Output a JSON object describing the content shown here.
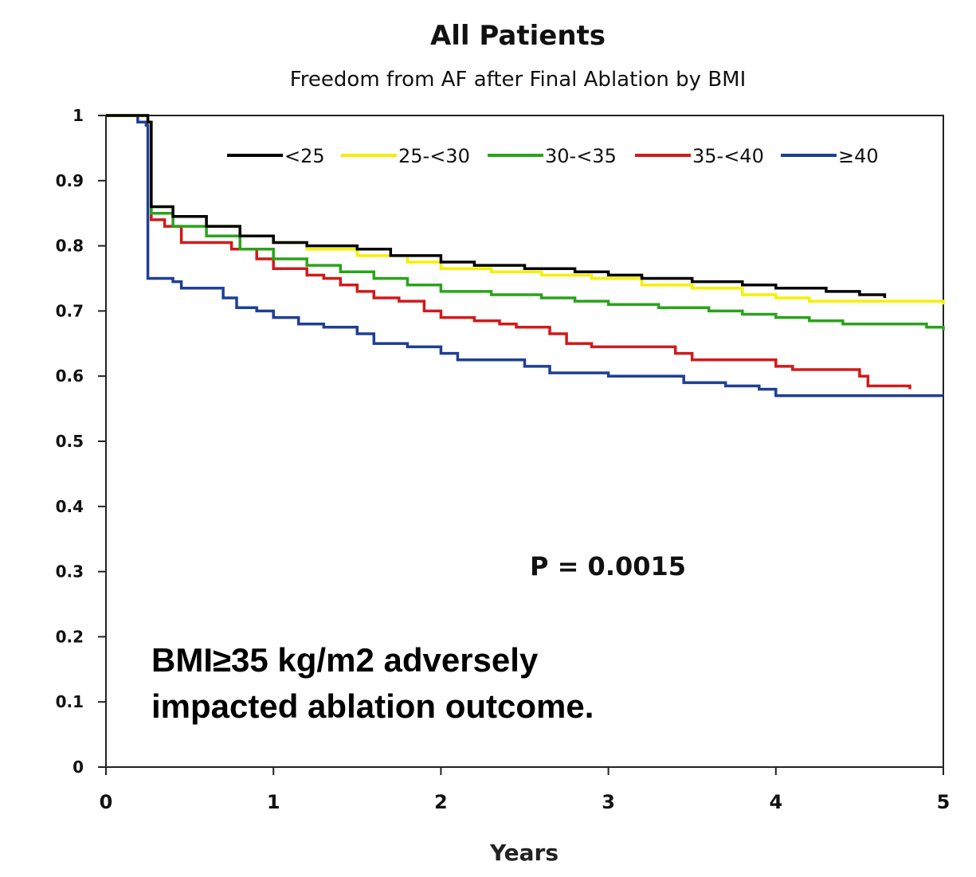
{
  "chart_data": {
    "type": "line",
    "title": "All Patients",
    "subtitle": "Freedom from AF after Final Ablation by BMI",
    "xlabel": "Years",
    "ylabel": "",
    "xlim": [
      0,
      5
    ],
    "ylim": [
      0,
      1
    ],
    "xticks": [
      "0",
      "1",
      "2",
      "3",
      "4",
      "5"
    ],
    "yticks": [
      "0",
      "0.1",
      "0.2",
      "0.3",
      "0.4",
      "0.5",
      "0.6",
      "0.7",
      "0.8",
      "0.9",
      "1"
    ],
    "grid": false,
    "legend_position": "top",
    "series": [
      {
        "name": "<25",
        "color": "#000000",
        "points": [
          [
            0,
            1
          ],
          [
            0.2,
            1
          ],
          [
            0.25,
            0.99
          ],
          [
            0.27,
            0.86
          ],
          [
            0.4,
            0.845
          ],
          [
            0.6,
            0.83
          ],
          [
            0.8,
            0.815
          ],
          [
            1.0,
            0.805
          ],
          [
            1.2,
            0.8
          ],
          [
            1.5,
            0.795
          ],
          [
            1.7,
            0.785
          ],
          [
            2.0,
            0.775
          ],
          [
            2.2,
            0.77
          ],
          [
            2.5,
            0.765
          ],
          [
            2.8,
            0.76
          ],
          [
            3.0,
            0.755
          ],
          [
            3.2,
            0.75
          ],
          [
            3.5,
            0.745
          ],
          [
            3.8,
            0.74
          ],
          [
            4.0,
            0.735
          ],
          [
            4.3,
            0.73
          ],
          [
            4.5,
            0.725
          ],
          [
            4.65,
            0.72
          ]
        ]
      },
      {
        "name": "25-<30",
        "color": "#f5f000",
        "points": [
          [
            0,
            1
          ],
          [
            0.2,
            1
          ],
          [
            0.25,
            0.99
          ],
          [
            0.27,
            0.86
          ],
          [
            0.4,
            0.845
          ],
          [
            0.6,
            0.83
          ],
          [
            0.8,
            0.815
          ],
          [
            1.0,
            0.805
          ],
          [
            1.2,
            0.795
          ],
          [
            1.5,
            0.785
          ],
          [
            1.8,
            0.775
          ],
          [
            2.0,
            0.765
          ],
          [
            2.3,
            0.76
          ],
          [
            2.6,
            0.755
          ],
          [
            2.9,
            0.75
          ],
          [
            3.2,
            0.74
          ],
          [
            3.5,
            0.735
          ],
          [
            3.8,
            0.725
          ],
          [
            4.0,
            0.72
          ],
          [
            4.2,
            0.715
          ],
          [
            4.5,
            0.715
          ],
          [
            4.9,
            0.715
          ],
          [
            5.0,
            0.71
          ]
        ]
      },
      {
        "name": "30-<35",
        "color": "#2aa31a",
        "points": [
          [
            0,
            1
          ],
          [
            0.2,
            1
          ],
          [
            0.25,
            0.99
          ],
          [
            0.27,
            0.85
          ],
          [
            0.4,
            0.83
          ],
          [
            0.6,
            0.815
          ],
          [
            0.8,
            0.795
          ],
          [
            1.0,
            0.78
          ],
          [
            1.2,
            0.77
          ],
          [
            1.4,
            0.76
          ],
          [
            1.6,
            0.75
          ],
          [
            1.8,
            0.74
          ],
          [
            2.0,
            0.73
          ],
          [
            2.3,
            0.725
          ],
          [
            2.6,
            0.72
          ],
          [
            2.8,
            0.715
          ],
          [
            3.0,
            0.71
          ],
          [
            3.3,
            0.705
          ],
          [
            3.6,
            0.7
          ],
          [
            3.8,
            0.695
          ],
          [
            4.0,
            0.69
          ],
          [
            4.2,
            0.685
          ],
          [
            4.4,
            0.68
          ],
          [
            4.7,
            0.68
          ],
          [
            4.9,
            0.675
          ],
          [
            5.0,
            0.67
          ]
        ]
      },
      {
        "name": "35-<40",
        "color": "#d11a1a",
        "points": [
          [
            0,
            1
          ],
          [
            0.2,
            1
          ],
          [
            0.25,
            0.99
          ],
          [
            0.27,
            0.84
          ],
          [
            0.35,
            0.83
          ],
          [
            0.45,
            0.805
          ],
          [
            0.6,
            0.805
          ],
          [
            0.75,
            0.795
          ],
          [
            0.9,
            0.78
          ],
          [
            1.0,
            0.765
          ],
          [
            1.15,
            0.765
          ],
          [
            1.2,
            0.755
          ],
          [
            1.3,
            0.75
          ],
          [
            1.4,
            0.74
          ],
          [
            1.5,
            0.73
          ],
          [
            1.6,
            0.72
          ],
          [
            1.75,
            0.715
          ],
          [
            1.9,
            0.7
          ],
          [
            2.0,
            0.69
          ],
          [
            2.2,
            0.685
          ],
          [
            2.35,
            0.68
          ],
          [
            2.45,
            0.675
          ],
          [
            2.65,
            0.665
          ],
          [
            2.75,
            0.65
          ],
          [
            2.9,
            0.645
          ],
          [
            3.2,
            0.645
          ],
          [
            3.4,
            0.635
          ],
          [
            3.5,
            0.625
          ],
          [
            3.8,
            0.625
          ],
          [
            4.0,
            0.615
          ],
          [
            4.1,
            0.61
          ],
          [
            4.4,
            0.61
          ],
          [
            4.5,
            0.6
          ],
          [
            4.55,
            0.585
          ],
          [
            4.7,
            0.585
          ],
          [
            4.8,
            0.58
          ]
        ]
      },
      {
        "name": "≥40",
        "color": "#1f3f95",
        "points": [
          [
            0,
            1
          ],
          [
            0.18,
            1
          ],
          [
            0.19,
            0.99
          ],
          [
            0.24,
            0.985
          ],
          [
            0.25,
            0.75
          ],
          [
            0.4,
            0.745
          ],
          [
            0.45,
            0.735
          ],
          [
            0.6,
            0.735
          ],
          [
            0.7,
            0.72
          ],
          [
            0.78,
            0.705
          ],
          [
            0.9,
            0.7
          ],
          [
            1.0,
            0.69
          ],
          [
            1.1,
            0.69
          ],
          [
            1.15,
            0.68
          ],
          [
            1.3,
            0.675
          ],
          [
            1.5,
            0.665
          ],
          [
            1.6,
            0.65
          ],
          [
            1.8,
            0.645
          ],
          [
            2.0,
            0.635
          ],
          [
            2.1,
            0.625
          ],
          [
            2.3,
            0.625
          ],
          [
            2.5,
            0.615
          ],
          [
            2.65,
            0.605
          ],
          [
            2.8,
            0.605
          ],
          [
            3.0,
            0.6
          ],
          [
            3.2,
            0.6
          ],
          [
            3.45,
            0.59
          ],
          [
            3.7,
            0.585
          ],
          [
            3.9,
            0.58
          ],
          [
            4.0,
            0.57
          ],
          [
            4.5,
            0.57
          ],
          [
            5.0,
            0.57
          ]
        ]
      }
    ],
    "annotations": {
      "p_value": "P = 0.0015",
      "note_line1": "BMI≥35 kg/m2  adversely",
      "note_line2": "impacted ablation outcome."
    }
  }
}
